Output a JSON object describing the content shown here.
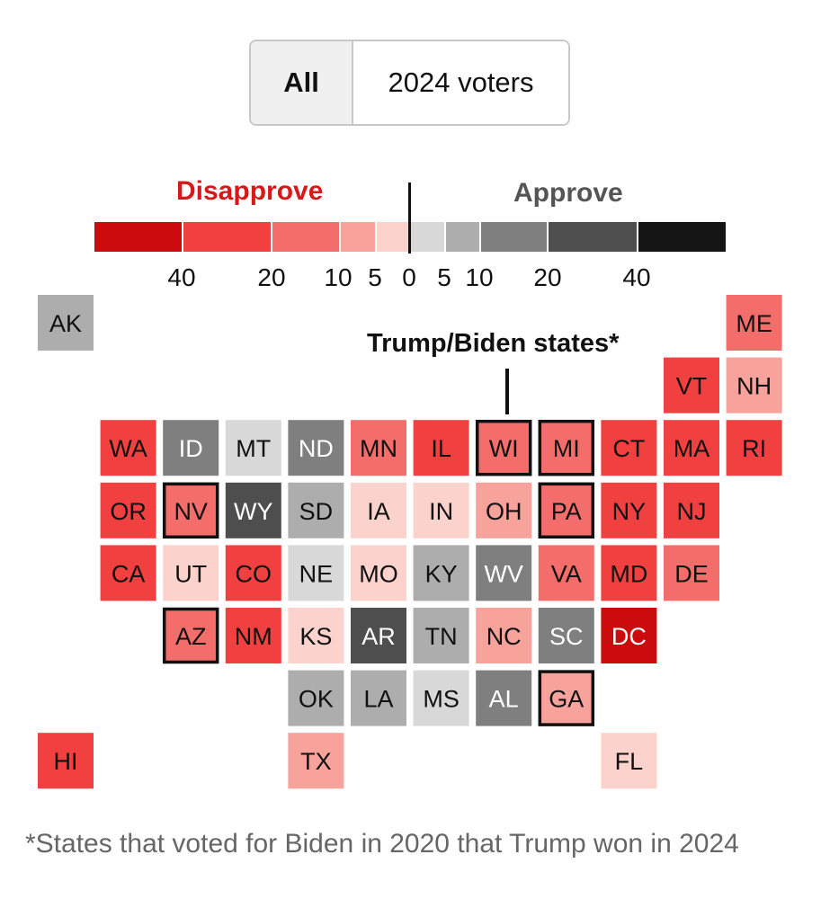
{
  "toggle": {
    "all_label": "All",
    "voters_label": "2024 voters",
    "selected": "All"
  },
  "legend": {
    "disapprove_label": "Disapprove",
    "approve_label": "Approve",
    "ticks": [
      "40",
      "20",
      "10",
      "5",
      "0",
      "5",
      "10",
      "20",
      "40"
    ],
    "colors": {
      "d4": "#cc0c0c",
      "d3": "#f0403f",
      "d2": "#f36e6a",
      "d1": "#f7a29b",
      "d0": "#fbd3cc",
      "a0": "#d8d8d8",
      "a1": "#adadad",
      "a2": "#7f7f7f",
      "a3": "#4e4e4e",
      "a4": "#141414"
    }
  },
  "annotation": {
    "label": "Trump/Biden states*"
  },
  "footnote": "*States that voted for Biden in 2020 that Trump won in 2024",
  "map_data": {
    "states": [
      {
        "abbr": "AK",
        "col": 0,
        "row": 0,
        "bin": "a1",
        "flip": false
      },
      {
        "abbr": "ME",
        "col": 11,
        "row": 0,
        "bin": "d2",
        "flip": false
      },
      {
        "abbr": "VT",
        "col": 10,
        "row": 1,
        "bin": "d3",
        "flip": false
      },
      {
        "abbr": "NH",
        "col": 11,
        "row": 1,
        "bin": "d1",
        "flip": false
      },
      {
        "abbr": "WA",
        "col": 1,
        "row": 2,
        "bin": "d3",
        "flip": false
      },
      {
        "abbr": "ID",
        "col": 2,
        "row": 2,
        "bin": "a2",
        "flip": false
      },
      {
        "abbr": "MT",
        "col": 3,
        "row": 2,
        "bin": "a0",
        "flip": false
      },
      {
        "abbr": "ND",
        "col": 4,
        "row": 2,
        "bin": "a2",
        "flip": false
      },
      {
        "abbr": "MN",
        "col": 5,
        "row": 2,
        "bin": "d2",
        "flip": false
      },
      {
        "abbr": "IL",
        "col": 6,
        "row": 2,
        "bin": "d3",
        "flip": false
      },
      {
        "abbr": "WI",
        "col": 7,
        "row": 2,
        "bin": "d2",
        "flip": true
      },
      {
        "abbr": "MI",
        "col": 8,
        "row": 2,
        "bin": "d2",
        "flip": true
      },
      {
        "abbr": "CT",
        "col": 9,
        "row": 2,
        "bin": "d3",
        "flip": false
      },
      {
        "abbr": "MA",
        "col": 10,
        "row": 2,
        "bin": "d3",
        "flip": false
      },
      {
        "abbr": "RI",
        "col": 11,
        "row": 2,
        "bin": "d3",
        "flip": false
      },
      {
        "abbr": "OR",
        "col": 1,
        "row": 3,
        "bin": "d3",
        "flip": false
      },
      {
        "abbr": "NV",
        "col": 2,
        "row": 3,
        "bin": "d2",
        "flip": true
      },
      {
        "abbr": "WY",
        "col": 3,
        "row": 3,
        "bin": "a3",
        "flip": false
      },
      {
        "abbr": "SD",
        "col": 4,
        "row": 3,
        "bin": "a1",
        "flip": false
      },
      {
        "abbr": "IA",
        "col": 5,
        "row": 3,
        "bin": "d0",
        "flip": false
      },
      {
        "abbr": "IN",
        "col": 6,
        "row": 3,
        "bin": "d0",
        "flip": false
      },
      {
        "abbr": "OH",
        "col": 7,
        "row": 3,
        "bin": "d1",
        "flip": false
      },
      {
        "abbr": "PA",
        "col": 8,
        "row": 3,
        "bin": "d2",
        "flip": true
      },
      {
        "abbr": "NY",
        "col": 9,
        "row": 3,
        "bin": "d3",
        "flip": false
      },
      {
        "abbr": "NJ",
        "col": 10,
        "row": 3,
        "bin": "d3",
        "flip": false
      },
      {
        "abbr": "CA",
        "col": 1,
        "row": 4,
        "bin": "d3",
        "flip": false
      },
      {
        "abbr": "UT",
        "col": 2,
        "row": 4,
        "bin": "d0",
        "flip": false
      },
      {
        "abbr": "CO",
        "col": 3,
        "row": 4,
        "bin": "d3",
        "flip": false
      },
      {
        "abbr": "NE",
        "col": 4,
        "row": 4,
        "bin": "a0",
        "flip": false
      },
      {
        "abbr": "MO",
        "col": 5,
        "row": 4,
        "bin": "d0",
        "flip": false
      },
      {
        "abbr": "KY",
        "col": 6,
        "row": 4,
        "bin": "a1",
        "flip": false
      },
      {
        "abbr": "WV",
        "col": 7,
        "row": 4,
        "bin": "a2",
        "flip": false
      },
      {
        "abbr": "VA",
        "col": 8,
        "row": 4,
        "bin": "d2",
        "flip": false
      },
      {
        "abbr": "MD",
        "col": 9,
        "row": 4,
        "bin": "d3",
        "flip": false
      },
      {
        "abbr": "DE",
        "col": 10,
        "row": 4,
        "bin": "d2",
        "flip": false
      },
      {
        "abbr": "AZ",
        "col": 2,
        "row": 5,
        "bin": "d2",
        "flip": true
      },
      {
        "abbr": "NM",
        "col": 3,
        "row": 5,
        "bin": "d3",
        "flip": false
      },
      {
        "abbr": "KS",
        "col": 4,
        "row": 5,
        "bin": "d0",
        "flip": false
      },
      {
        "abbr": "AR",
        "col": 5,
        "row": 5,
        "bin": "a3",
        "flip": false
      },
      {
        "abbr": "TN",
        "col": 6,
        "row": 5,
        "bin": "a1",
        "flip": false
      },
      {
        "abbr": "NC",
        "col": 7,
        "row": 5,
        "bin": "d1",
        "flip": false
      },
      {
        "abbr": "SC",
        "col": 8,
        "row": 5,
        "bin": "a2",
        "flip": false
      },
      {
        "abbr": "DC",
        "col": 9,
        "row": 5,
        "bin": "d4",
        "flip": false
      },
      {
        "abbr": "OK",
        "col": 4,
        "row": 6,
        "bin": "a1",
        "flip": false
      },
      {
        "abbr": "LA",
        "col": 5,
        "row": 6,
        "bin": "a1",
        "flip": false
      },
      {
        "abbr": "MS",
        "col": 6,
        "row": 6,
        "bin": "a0",
        "flip": false
      },
      {
        "abbr": "AL",
        "col": 7,
        "row": 6,
        "bin": "a2",
        "flip": false
      },
      {
        "abbr": "GA",
        "col": 8,
        "row": 6,
        "bin": "d1",
        "flip": true
      },
      {
        "abbr": "HI",
        "col": 0,
        "row": 7,
        "bin": "d3",
        "flip": false
      },
      {
        "abbr": "TX",
        "col": 4,
        "row": 7,
        "bin": "d1",
        "flip": false
      },
      {
        "abbr": "FL",
        "col": 9,
        "row": 7,
        "bin": "d0",
        "flip": false
      }
    ]
  }
}
